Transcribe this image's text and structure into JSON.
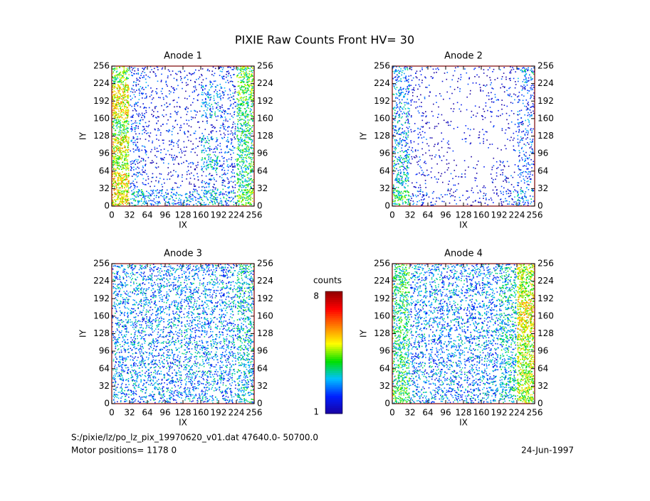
{
  "title": "PIXIE Raw Counts Front HV= 30",
  "colorbar": {
    "label": "counts",
    "clim": [
      1,
      8
    ],
    "colors": [
      "#1a00a0",
      "#0020ff",
      "#00c0ff",
      "#00e000",
      "#ffff00",
      "#ff8000",
      "#ff0000",
      "#900000"
    ]
  },
  "footer": {
    "file": "S:/pixie/lz/po_lz_pix_19970620_v01.dat   47640.0- 50700.0",
    "motor": "Motor positions= 1178 0",
    "date": "24-Jun-1997"
  },
  "chart_data": [
    {
      "type": "heatmap",
      "title": "Anode 1",
      "xlabel": "IX",
      "ylabel": "IY",
      "xlim": [
        0,
        256
      ],
      "ylim": [
        0,
        256
      ],
      "xticks": [
        0,
        32,
        64,
        96,
        128,
        160,
        192,
        224,
        256
      ],
      "yticks": [
        0,
        32,
        64,
        96,
        128,
        160,
        192,
        224,
        256
      ],
      "z": [
        [
          4,
          2,
          1.5,
          1.5,
          1.5,
          1.5,
          2,
          4
        ],
        [
          5,
          2,
          1.5,
          1.5,
          1.5,
          2.5,
          2,
          4
        ],
        [
          5,
          2,
          1.5,
          1.5,
          1.5,
          2.5,
          2,
          3.5
        ],
        [
          4,
          2,
          1.5,
          1.5,
          1.5,
          1.5,
          2,
          3.5
        ],
        [
          5,
          2,
          1.5,
          1.5,
          1.5,
          2.5,
          2,
          3.5
        ],
        [
          4.5,
          2,
          1.5,
          1.5,
          1.5,
          3,
          2,
          3.5
        ],
        [
          5,
          2,
          1.5,
          1.5,
          1.5,
          2,
          2,
          3.5
        ],
        [
          5,
          3,
          2.5,
          2.5,
          2.5,
          3,
          2.5,
          4
        ]
      ]
    },
    {
      "type": "heatmap",
      "title": "Anode 2",
      "xlabel": "IX",
      "ylabel": "IY",
      "xlim": [
        0,
        256
      ],
      "ylim": [
        0,
        256
      ],
      "xticks": [
        0,
        32,
        64,
        96,
        128,
        160,
        192,
        224,
        256
      ],
      "yticks": [
        0,
        32,
        64,
        96,
        128,
        160,
        192,
        224,
        256
      ],
      "z": [
        [
          2.5,
          1.5,
          1.3,
          1.3,
          1.3,
          1.3,
          1.5,
          2.5
        ],
        [
          2.5,
          1.5,
          1.2,
          1.2,
          1.2,
          1.5,
          1.5,
          2
        ],
        [
          2.5,
          1.5,
          1.2,
          1.2,
          1.2,
          1.5,
          1.3,
          2
        ],
        [
          2.5,
          1.5,
          1.2,
          1.2,
          1.2,
          1.2,
          1.3,
          2
        ],
        [
          2.5,
          1.5,
          1.3,
          1.2,
          1.2,
          1.2,
          1.3,
          2
        ],
        [
          3,
          1.5,
          1.3,
          1.2,
          1.2,
          1.2,
          1.3,
          2
        ],
        [
          3,
          1.5,
          1.3,
          1.3,
          1.2,
          1.3,
          1.5,
          2
        ],
        [
          3.5,
          2,
          1.5,
          1.5,
          1.5,
          1.5,
          2,
          2.5
        ]
      ]
    },
    {
      "type": "heatmap",
      "title": "Anode 3",
      "xlabel": "IX",
      "ylabel": "IY",
      "xlim": [
        0,
        256
      ],
      "ylim": [
        0,
        256
      ],
      "xticks": [
        0,
        32,
        64,
        96,
        128,
        160,
        192,
        224,
        256
      ],
      "yticks": [
        0,
        32,
        64,
        96,
        128,
        160,
        192,
        224,
        256
      ],
      "z": [
        [
          2.5,
          2.5,
          2.5,
          2.5,
          2.5,
          2.5,
          2.5,
          3
        ],
        [
          2.5,
          2.5,
          2.5,
          2.5,
          2.5,
          2.5,
          2.5,
          3
        ],
        [
          2.5,
          2.5,
          2.5,
          2.5,
          2.5,
          2.5,
          2.5,
          3
        ],
        [
          2.5,
          2.5,
          2.5,
          2.5,
          2.5,
          2.5,
          2.5,
          3
        ],
        [
          2.5,
          2.5,
          2.5,
          2.5,
          2.5,
          2.5,
          2.5,
          3
        ],
        [
          2.5,
          2.5,
          2.5,
          2.5,
          2.5,
          2.5,
          2.5,
          3
        ],
        [
          2.5,
          2.5,
          2.5,
          2.5,
          2.5,
          2.5,
          2.5,
          3
        ],
        [
          2.5,
          2.5,
          2.5,
          2.5,
          2.5,
          2.5,
          2.5,
          3
        ]
      ]
    },
    {
      "type": "heatmap",
      "title": "Anode 4",
      "xlabel": "IX",
      "ylabel": "IY",
      "xlim": [
        0,
        256
      ],
      "ylim": [
        0,
        256
      ],
      "xticks": [
        0,
        32,
        64,
        96,
        128,
        160,
        192,
        224,
        256
      ],
      "yticks": [
        0,
        32,
        64,
        96,
        128,
        160,
        192,
        224,
        256
      ],
      "z": [
        [
          3.5,
          2.5,
          2.5,
          2.5,
          2.5,
          2.5,
          3,
          4.5
        ],
        [
          3.5,
          2.5,
          2.5,
          2.5,
          2.5,
          2.5,
          3,
          4.5
        ],
        [
          3.5,
          2.5,
          2.5,
          2.5,
          2.5,
          2.5,
          3,
          5
        ],
        [
          3.5,
          2.5,
          2.5,
          2.5,
          2.5,
          2.5,
          3,
          5
        ],
        [
          3.5,
          2.5,
          2.5,
          2.5,
          2.5,
          2.5,
          3,
          4.5
        ],
        [
          3.5,
          2.5,
          2.5,
          2.5,
          2.5,
          2.5,
          3,
          4.5
        ],
        [
          3.5,
          2.5,
          2.5,
          2.5,
          2.5,
          2.5,
          3,
          4.5
        ],
        [
          4,
          2.5,
          2.5,
          2.5,
          2.5,
          2.5,
          3,
          4.5
        ]
      ]
    }
  ]
}
